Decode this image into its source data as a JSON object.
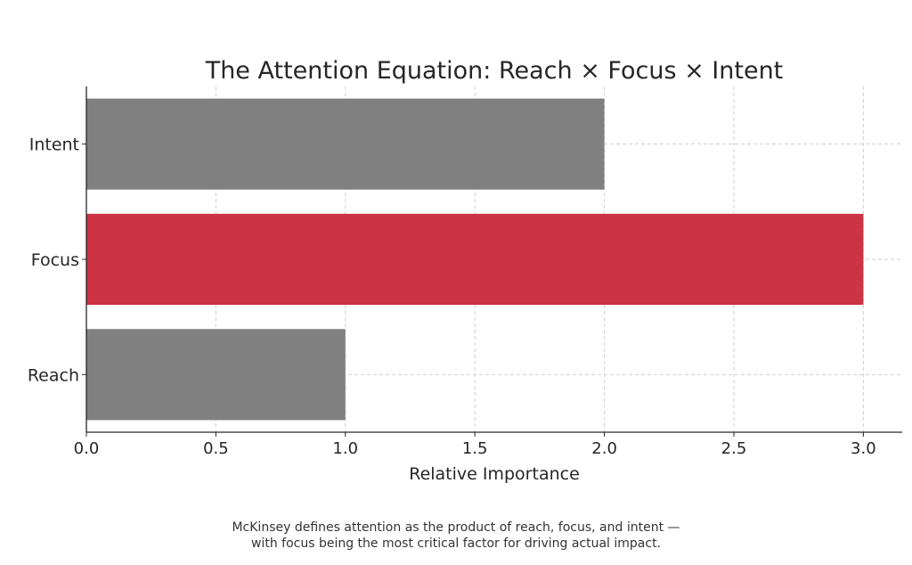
{
  "chart_data": {
    "type": "bar",
    "orientation": "horizontal",
    "title": "The Attention Equation: Reach × Focus × Intent",
    "xlabel": "Relative Importance",
    "ylabel": "",
    "categories": [
      "Reach",
      "Focus",
      "Intent"
    ],
    "values": [
      1,
      3,
      2
    ],
    "bar_colors": [
      "#808080",
      "#cc3344",
      "#808080"
    ],
    "xlim": [
      0,
      3.15
    ],
    "xticks": [
      0.0,
      0.5,
      1.0,
      1.5,
      2.0,
      2.5,
      3.0
    ],
    "xtick_labels": [
      "0.0",
      "0.5",
      "1.0",
      "1.5",
      "2.0",
      "2.5",
      "3.0"
    ],
    "grid": true,
    "grid_style": "dashed"
  },
  "caption": {
    "line1": "McKinsey defines attention as the product of reach, focus, and intent —",
    "line2": "with focus being the most critical factor for driving actual impact."
  }
}
